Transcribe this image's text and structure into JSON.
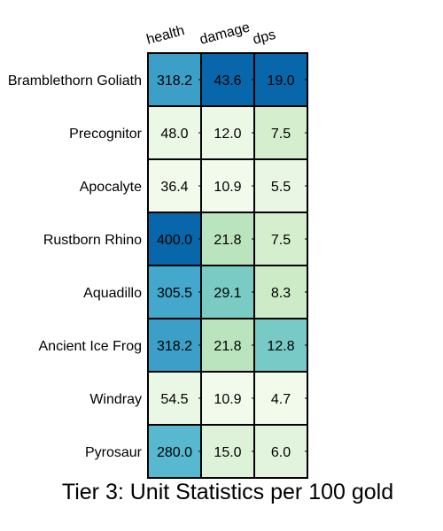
{
  "chart_data": {
    "type": "heatmap",
    "title": "Tier 3: Unit Statistics per 100 gold",
    "columns": [
      "health",
      "damage",
      "dps"
    ],
    "rows": [
      "Bramblethorn Goliath",
      "Precognitor",
      "Apocalyte",
      "Rustborn Rhino",
      "Aquadillo",
      "Ancient Ice Frog",
      "Windray",
      "Pyrosaur"
    ],
    "values": [
      [
        318.2,
        43.6,
        19.0
      ],
      [
        48.0,
        12.0,
        7.5
      ],
      [
        36.4,
        10.9,
        5.5
      ],
      [
        400.0,
        21.8,
        7.5
      ],
      [
        305.5,
        29.1,
        8.3
      ],
      [
        318.2,
        21.8,
        12.8
      ],
      [
        54.5,
        10.9,
        4.7
      ],
      [
        280.0,
        15.0,
        6.0
      ]
    ],
    "colormap": "GnBu",
    "color_scale": "per-column",
    "grid": true,
    "legend": "none"
  }
}
